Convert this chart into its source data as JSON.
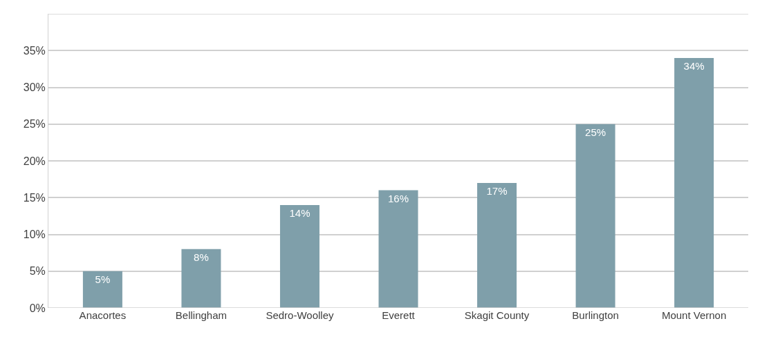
{
  "chart_data": {
    "type": "bar",
    "categories": [
      "Anacortes",
      "Bellingham",
      "Sedro-Woolley",
      "Everett",
      "Skagit County",
      "Burlington",
      "Mount Vernon"
    ],
    "values": [
      5,
      8,
      14,
      16,
      17,
      25,
      34
    ],
    "value_labels": [
      "5%",
      "8%",
      "14%",
      "16%",
      "17%",
      "25%",
      "34%"
    ],
    "color": "#7f9faa",
    "ylim": [
      0,
      40
    ],
    "yticks": [
      {
        "value": 0,
        "label": "0%"
      },
      {
        "value": 5,
        "label": "5%"
      },
      {
        "value": 10,
        "label": "10%"
      },
      {
        "value": 15,
        "label": "15%"
      },
      {
        "value": 20,
        "label": "20%"
      },
      {
        "value": 25,
        "label": "25%"
      },
      {
        "value": 30,
        "label": "30%"
      },
      {
        "value": 35,
        "label": "35%"
      },
      {
        "value": 40,
        "label": null
      }
    ],
    "grid": "y"
  }
}
